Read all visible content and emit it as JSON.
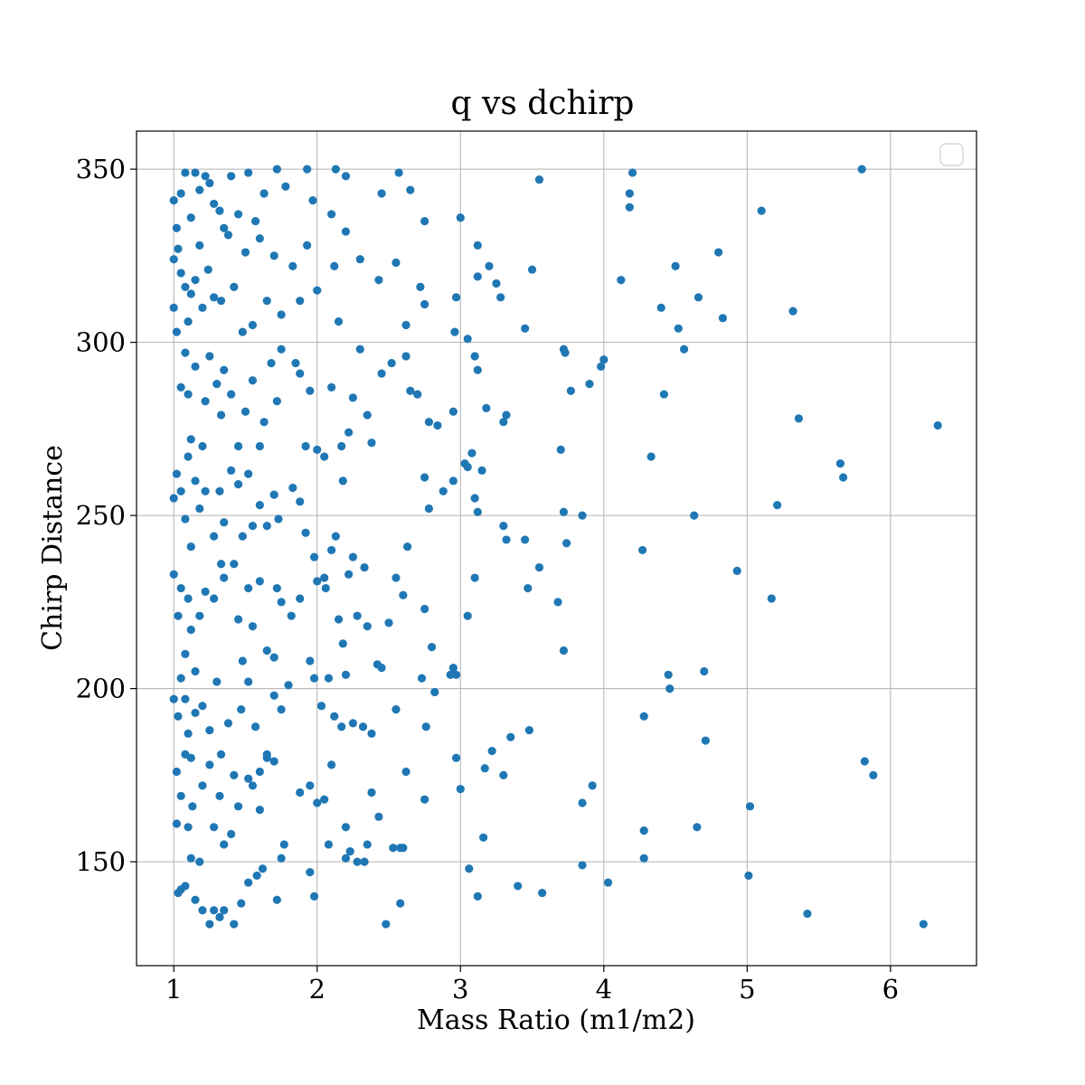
{
  "chart_data": {
    "type": "scatter",
    "title": "q vs dchirp",
    "xlabel": "Mass Ratio (m1/m2)",
    "ylabel": "Chirp Distance",
    "xlim": [
      0.74,
      6.6
    ],
    "ylim": [
      120,
      361
    ],
    "xticks": [
      1,
      2,
      3,
      4,
      5,
      6
    ],
    "yticks": [
      150,
      200,
      250,
      300,
      350
    ],
    "grid": true,
    "legend": "top-right (empty)",
    "marker_color": "#1f77b4",
    "points": [
      [
        1.0,
        341
      ],
      [
        1.02,
        333
      ],
      [
        1.05,
        343
      ],
      [
        1.08,
        349
      ],
      [
        1.12,
        336
      ],
      [
        1.15,
        349
      ],
      [
        1.18,
        344
      ],
      [
        1.22,
        348
      ],
      [
        1.25,
        346
      ],
      [
        1.28,
        340
      ],
      [
        1.32,
        338
      ],
      [
        1.35,
        333
      ],
      [
        1.4,
        348
      ],
      [
        1.45,
        337
      ],
      [
        1.52,
        349
      ],
      [
        1.57,
        335
      ],
      [
        1.63,
        343
      ],
      [
        1.72,
        350
      ],
      [
        1.78,
        345
      ],
      [
        1.93,
        350
      ],
      [
        1.97,
        341
      ],
      [
        2.1,
        337
      ],
      [
        2.13,
        350
      ],
      [
        2.2,
        348
      ],
      [
        2.45,
        343
      ],
      [
        2.57,
        349
      ],
      [
        2.65,
        344
      ],
      [
        2.75,
        335
      ],
      [
        3.0,
        336
      ],
      [
        3.55,
        347
      ],
      [
        4.2,
        349
      ],
      [
        4.18,
        343
      ],
      [
        4.18,
        339
      ],
      [
        5.1,
        338
      ],
      [
        5.8,
        350
      ],
      [
        1.0,
        324
      ],
      [
        1.03,
        327
      ],
      [
        1.05,
        320
      ],
      [
        1.08,
        316
      ],
      [
        1.1,
        306
      ],
      [
        1.12,
        314
      ],
      [
        1.15,
        318
      ],
      [
        1.18,
        328
      ],
      [
        1.2,
        310
      ],
      [
        1.24,
        321
      ],
      [
        1.28,
        313
      ],
      [
        1.33,
        312
      ],
      [
        1.38,
        331
      ],
      [
        1.42,
        316
      ],
      [
        1.48,
        303
      ],
      [
        1.5,
        326
      ],
      [
        1.55,
        305
      ],
      [
        1.6,
        330
      ],
      [
        1.65,
        312
      ],
      [
        1.7,
        325
      ],
      [
        1.75,
        308
      ],
      [
        1.83,
        322
      ],
      [
        1.88,
        312
      ],
      [
        1.93,
        328
      ],
      [
        2.0,
        315
      ],
      [
        2.12,
        322
      ],
      [
        2.15,
        306
      ],
      [
        2.2,
        332
      ],
      [
        2.3,
        324
      ],
      [
        2.43,
        318
      ],
      [
        2.55,
        323
      ],
      [
        2.62,
        305
      ],
      [
        2.72,
        316
      ],
      [
        2.75,
        311
      ],
      [
        2.96,
        303
      ],
      [
        2.97,
        313
      ],
      [
        3.12,
        328
      ],
      [
        3.12,
        319
      ],
      [
        3.2,
        322
      ],
      [
        3.25,
        317
      ],
      [
        3.28,
        313
      ],
      [
        3.5,
        321
      ],
      [
        3.45,
        304
      ],
      [
        4.12,
        318
      ],
      [
        4.4,
        310
      ],
      [
        4.5,
        322
      ],
      [
        4.52,
        304
      ],
      [
        4.66,
        313
      ],
      [
        4.8,
        326
      ],
      [
        4.83,
        307
      ],
      [
        5.32,
        309
      ],
      [
        1.0,
        310
      ],
      [
        1.02,
        303
      ],
      [
        1.05,
        287
      ],
      [
        1.08,
        297
      ],
      [
        1.1,
        285
      ],
      [
        1.12,
        272
      ],
      [
        1.15,
        293
      ],
      [
        1.2,
        270
      ],
      [
        1.22,
        283
      ],
      [
        1.25,
        296
      ],
      [
        1.3,
        288
      ],
      [
        1.33,
        279
      ],
      [
        1.35,
        292
      ],
      [
        1.4,
        285
      ],
      [
        1.45,
        270
      ],
      [
        1.5,
        280
      ],
      [
        1.55,
        289
      ],
      [
        1.6,
        270
      ],
      [
        1.63,
        277
      ],
      [
        1.68,
        294
      ],
      [
        1.72,
        283
      ],
      [
        1.75,
        298
      ],
      [
        1.85,
        294
      ],
      [
        1.88,
        291
      ],
      [
        1.92,
        270
      ],
      [
        1.95,
        286
      ],
      [
        2.0,
        269
      ],
      [
        2.05,
        267
      ],
      [
        2.1,
        287
      ],
      [
        2.17,
        270
      ],
      [
        2.22,
        274
      ],
      [
        2.25,
        284
      ],
      [
        2.3,
        298
      ],
      [
        2.35,
        279
      ],
      [
        2.38,
        271
      ],
      [
        2.45,
        291
      ],
      [
        2.52,
        294
      ],
      [
        2.62,
        296
      ],
      [
        2.65,
        286
      ],
      [
        2.7,
        285
      ],
      [
        2.78,
        277
      ],
      [
        2.84,
        276
      ],
      [
        2.95,
        280
      ],
      [
        3.03,
        265
      ],
      [
        3.05,
        301
      ],
      [
        3.1,
        296
      ],
      [
        3.12,
        292
      ],
      [
        3.18,
        281
      ],
      [
        3.3,
        277
      ],
      [
        3.32,
        279
      ],
      [
        3.72,
        298
      ],
      [
        3.73,
        297
      ],
      [
        3.77,
        286
      ],
      [
        3.9,
        288
      ],
      [
        3.98,
        293
      ],
      [
        4.0,
        295
      ],
      [
        4.42,
        285
      ],
      [
        4.56,
        298
      ],
      [
        4.33,
        267
      ],
      [
        5.36,
        278
      ],
      [
        6.33,
        276
      ],
      [
        1.0,
        255
      ],
      [
        1.02,
        262
      ],
      [
        1.05,
        257
      ],
      [
        1.08,
        249
      ],
      [
        1.1,
        267
      ],
      [
        1.12,
        241
      ],
      [
        1.15,
        260
      ],
      [
        1.18,
        252
      ],
      [
        1.22,
        257
      ],
      [
        1.28,
        244
      ],
      [
        1.32,
        257
      ],
      [
        1.35,
        248
      ],
      [
        1.4,
        263
      ],
      [
        1.45,
        259
      ],
      [
        1.48,
        244
      ],
      [
        1.52,
        262
      ],
      [
        1.55,
        247
      ],
      [
        1.6,
        253
      ],
      [
        1.65,
        247
      ],
      [
        1.7,
        256
      ],
      [
        1.73,
        249
      ],
      [
        1.83,
        258
      ],
      [
        1.88,
        254
      ],
      [
        1.92,
        245
      ],
      [
        1.98,
        238
      ],
      [
        2.05,
        232
      ],
      [
        2.1,
        240
      ],
      [
        2.13,
        244
      ],
      [
        2.18,
        260
      ],
      [
        2.25,
        238
      ],
      [
        2.33,
        235
      ],
      [
        2.55,
        232
      ],
      [
        2.63,
        241
      ],
      [
        2.75,
        261
      ],
      [
        2.78,
        252
      ],
      [
        2.88,
        257
      ],
      [
        2.95,
        260
      ],
      [
        3.05,
        264
      ],
      [
        3.08,
        268
      ],
      [
        3.1,
        255
      ],
      [
        3.12,
        251
      ],
      [
        3.15,
        263
      ],
      [
        3.3,
        247
      ],
      [
        3.32,
        243
      ],
      [
        3.45,
        243
      ],
      [
        3.55,
        235
      ],
      [
        3.7,
        269
      ],
      [
        3.72,
        251
      ],
      [
        3.74,
        242
      ],
      [
        3.85,
        250
      ],
      [
        4.27,
        240
      ],
      [
        4.63,
        250
      ],
      [
        5.21,
        253
      ],
      [
        5.65,
        265
      ],
      [
        5.67,
        261
      ],
      [
        1.0,
        233
      ],
      [
        1.03,
        221
      ],
      [
        1.05,
        229
      ],
      [
        1.08,
        210
      ],
      [
        1.1,
        226
      ],
      [
        1.12,
        217
      ],
      [
        1.15,
        205
      ],
      [
        1.18,
        221
      ],
      [
        1.22,
        228
      ],
      [
        1.28,
        226
      ],
      [
        1.33,
        236
      ],
      [
        1.35,
        232
      ],
      [
        1.42,
        236
      ],
      [
        1.45,
        220
      ],
      [
        1.48,
        208
      ],
      [
        1.52,
        229
      ],
      [
        1.55,
        218
      ],
      [
        1.6,
        231
      ],
      [
        1.65,
        211
      ],
      [
        1.7,
        209
      ],
      [
        1.72,
        229
      ],
      [
        1.75,
        225
      ],
      [
        1.82,
        221
      ],
      [
        1.88,
        226
      ],
      [
        1.95,
        208
      ],
      [
        2.0,
        231
      ],
      [
        2.06,
        229
      ],
      [
        2.15,
        220
      ],
      [
        2.18,
        213
      ],
      [
        2.22,
        233
      ],
      [
        2.28,
        221
      ],
      [
        2.35,
        218
      ],
      [
        2.42,
        207
      ],
      [
        2.5,
        219
      ],
      [
        2.6,
        227
      ],
      [
        2.75,
        223
      ],
      [
        2.8,
        212
      ],
      [
        2.95,
        206
      ],
      [
        3.05,
        221
      ],
      [
        3.1,
        232
      ],
      [
        3.47,
        229
      ],
      [
        3.68,
        225
      ],
      [
        3.72,
        211
      ],
      [
        4.93,
        234
      ],
      [
        5.17,
        226
      ],
      [
        1.0,
        197
      ],
      [
        1.03,
        192
      ],
      [
        1.05,
        203
      ],
      [
        1.08,
        197
      ],
      [
        1.1,
        187
      ],
      [
        1.12,
        180
      ],
      [
        1.15,
        193
      ],
      [
        1.2,
        195
      ],
      [
        1.25,
        188
      ],
      [
        1.3,
        202
      ],
      [
        1.33,
        181
      ],
      [
        1.38,
        190
      ],
      [
        1.42,
        175
      ],
      [
        1.47,
        194
      ],
      [
        1.52,
        202
      ],
      [
        1.57,
        189
      ],
      [
        1.6,
        176
      ],
      [
        1.65,
        180
      ],
      [
        1.7,
        198
      ],
      [
        1.75,
        194
      ],
      [
        1.8,
        201
      ],
      [
        1.98,
        203
      ],
      [
        2.03,
        195
      ],
      [
        2.08,
        203
      ],
      [
        2.12,
        192
      ],
      [
        2.17,
        189
      ],
      [
        2.2,
        204
      ],
      [
        2.25,
        190
      ],
      [
        2.32,
        189
      ],
      [
        2.38,
        187
      ],
      [
        2.45,
        206
      ],
      [
        2.55,
        194
      ],
      [
        2.62,
        176
      ],
      [
        2.73,
        203
      ],
      [
        2.76,
        189
      ],
      [
        2.82,
        199
      ],
      [
        2.93,
        204
      ],
      [
        2.97,
        204
      ],
      [
        3.22,
        182
      ],
      [
        3.3,
        175
      ],
      [
        3.35,
        186
      ],
      [
        3.48,
        188
      ],
      [
        4.28,
        192
      ],
      [
        4.45,
        204
      ],
      [
        4.46,
        200
      ],
      [
        4.7,
        205
      ],
      [
        4.71,
        185
      ],
      [
        1.02,
        176
      ],
      [
        1.05,
        169
      ],
      [
        1.08,
        181
      ],
      [
        1.1,
        160
      ],
      [
        1.13,
        166
      ],
      [
        1.18,
        150
      ],
      [
        1.2,
        172
      ],
      [
        1.25,
        178
      ],
      [
        1.28,
        160
      ],
      [
        1.32,
        169
      ],
      [
        1.35,
        155
      ],
      [
        1.4,
        158
      ],
      [
        1.45,
        166
      ],
      [
        1.52,
        174
      ],
      [
        1.55,
        172
      ],
      [
        1.6,
        165
      ],
      [
        1.65,
        181
      ],
      [
        1.7,
        179
      ],
      [
        1.77,
        155
      ],
      [
        1.88,
        170
      ],
      [
        1.95,
        172
      ],
      [
        2.0,
        167
      ],
      [
        2.05,
        168
      ],
      [
        2.1,
        178
      ],
      [
        2.2,
        160
      ],
      [
        2.28,
        150
      ],
      [
        2.38,
        170
      ],
      [
        2.43,
        163
      ],
      [
        2.53,
        154
      ],
      [
        2.58,
        154
      ],
      [
        2.75,
        168
      ],
      [
        2.97,
        180
      ],
      [
        3.0,
        171
      ],
      [
        3.17,
        177
      ],
      [
        3.16,
        157
      ],
      [
        3.85,
        167
      ],
      [
        3.92,
        172
      ],
      [
        4.28,
        159
      ],
      [
        4.65,
        160
      ],
      [
        5.02,
        166
      ],
      [
        5.82,
        179
      ],
      [
        5.88,
        175
      ],
      [
        1.02,
        161
      ],
      [
        1.03,
        141
      ],
      [
        1.05,
        142
      ],
      [
        1.08,
        143
      ],
      [
        1.12,
        151
      ],
      [
        1.15,
        139
      ],
      [
        1.2,
        136
      ],
      [
        1.25,
        132
      ],
      [
        1.28,
        136
      ],
      [
        1.32,
        134
      ],
      [
        1.35,
        136
      ],
      [
        1.42,
        132
      ],
      [
        1.47,
        138
      ],
      [
        1.52,
        144
      ],
      [
        1.58,
        146
      ],
      [
        1.62,
        148
      ],
      [
        1.72,
        139
      ],
      [
        1.75,
        151
      ],
      [
        1.95,
        147
      ],
      [
        1.98,
        140
      ],
      [
        2.08,
        155
      ],
      [
        2.2,
        151
      ],
      [
        2.23,
        153
      ],
      [
        2.33,
        150
      ],
      [
        2.35,
        155
      ],
      [
        2.48,
        132
      ],
      [
        2.58,
        138
      ],
      [
        2.6,
        154
      ],
      [
        3.06,
        148
      ],
      [
        3.12,
        140
      ],
      [
        3.4,
        143
      ],
      [
        3.57,
        141
      ],
      [
        3.85,
        149
      ],
      [
        4.03,
        144
      ],
      [
        4.28,
        151
      ],
      [
        5.01,
        146
      ],
      [
        5.42,
        135
      ],
      [
        6.23,
        132
      ]
    ]
  }
}
